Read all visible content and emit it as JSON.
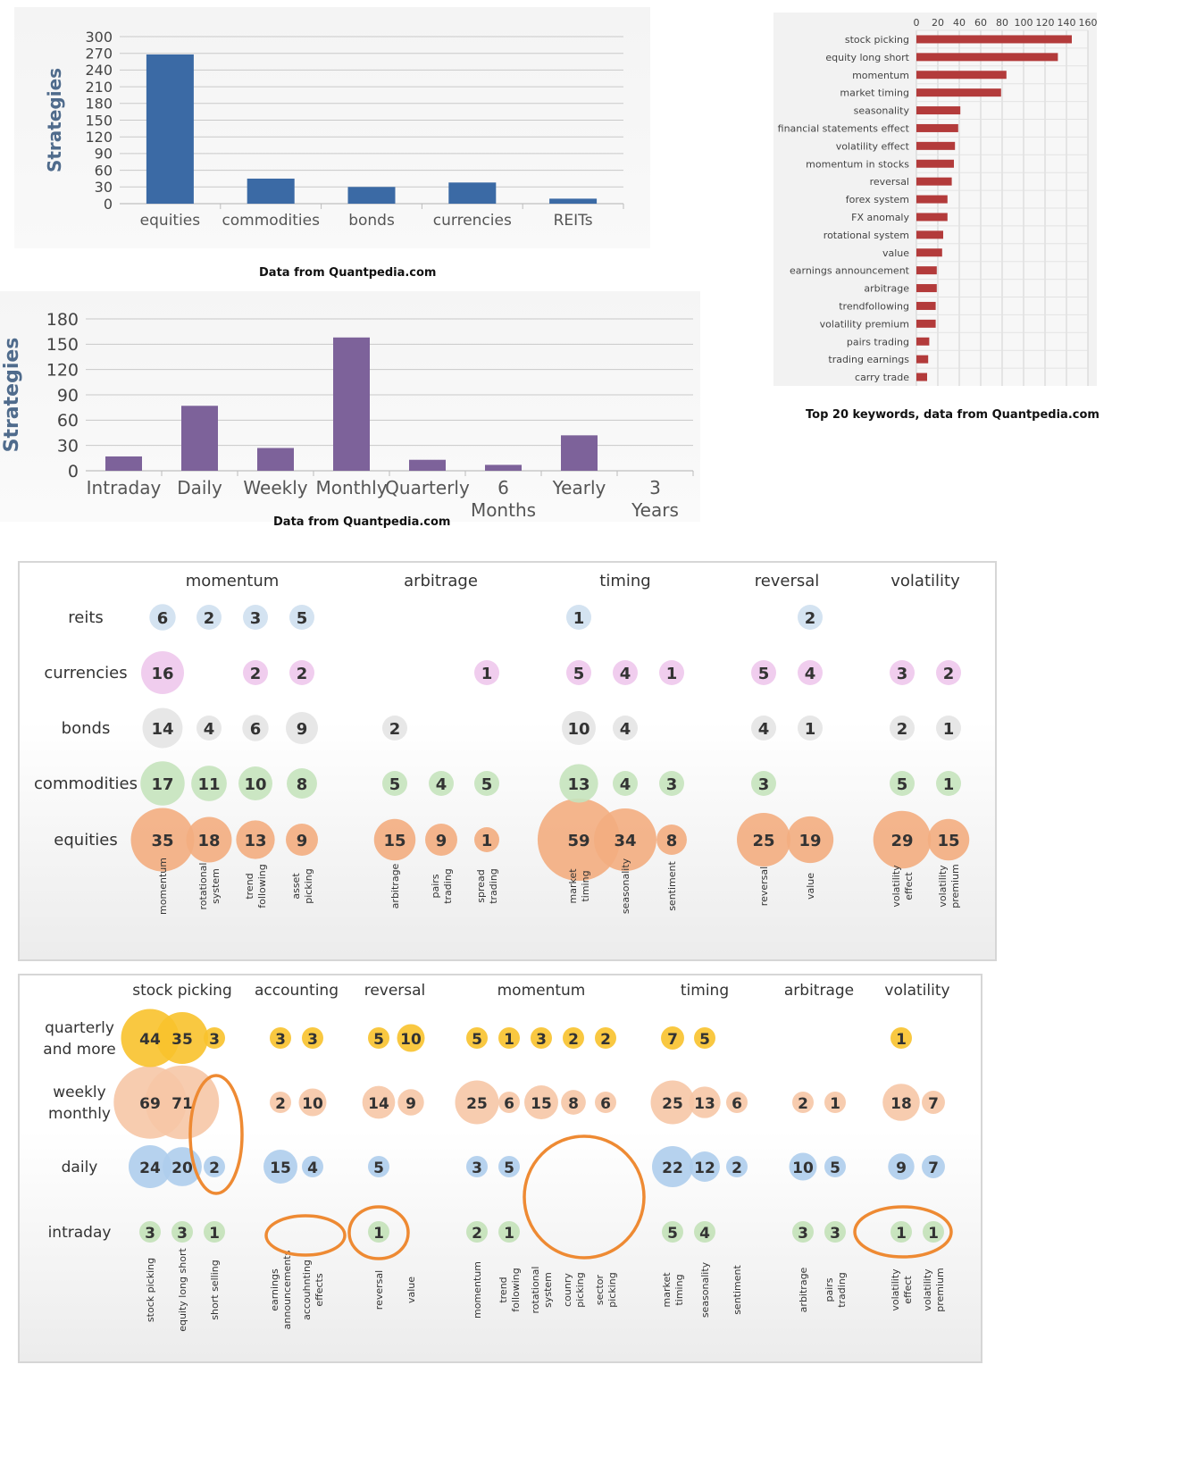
{
  "chart_data": [
    {
      "type": "bar",
      "categories": [
        "equities",
        "commodities",
        "bonds",
        "currencies",
        "REITs"
      ],
      "values": [
        268,
        45,
        30,
        38,
        9
      ],
      "ylabel": "Strategies",
      "ylim": [
        0,
        300
      ],
      "yticks": [
        0,
        30,
        60,
        90,
        120,
        150,
        180,
        210,
        240,
        270,
        300
      ],
      "grid": true,
      "color": "#3b6aa5",
      "caption": "Data from Quantpedia.com"
    },
    {
      "type": "bar",
      "categories": [
        "Intraday",
        "Daily",
        "Weekly",
        "Monthly",
        "Quarterly",
        "6 Months",
        "Yearly",
        "3 Years"
      ],
      "values": [
        17,
        77,
        27,
        158,
        13,
        7,
        42,
        0
      ],
      "ylabel": "Strategies",
      "ylim": [
        0,
        180
      ],
      "yticks": [
        0,
        30,
        60,
        90,
        120,
        150,
        180
      ],
      "grid": true,
      "color": "#7d629a",
      "caption": "Data from Quantpedia.com"
    },
    {
      "type": "bar",
      "orientation": "horizontal",
      "categories": [
        "stock picking",
        "equity long short",
        "momentum",
        "market timing",
        "seasonality",
        "financial statements effect",
        "volatility effect",
        "momentum in stocks",
        "reversal",
        "forex system",
        "FX anomaly",
        "rotational system",
        "value",
        "earnings announcement",
        "arbitrage",
        "trendfollowing",
        "volatility premium",
        "pairs trading",
        "trading earnings",
        "carry trade"
      ],
      "values": [
        145,
        132,
        84,
        79,
        41,
        39,
        36,
        35,
        33,
        29,
        29,
        25,
        24,
        19,
        19,
        18,
        18,
        12,
        11,
        10
      ],
      "xlim": [
        0,
        160
      ],
      "xticks": [
        0,
        20,
        40,
        60,
        80,
        100,
        120,
        140,
        160
      ],
      "grid": true,
      "color": "#b33b3b",
      "caption": "Top 20 keywords, data from Quantpedia.com"
    },
    {
      "type": "bubble",
      "groups": [
        "momentum",
        "arbitrage",
        "timing",
        "reversal",
        "volatility"
      ],
      "rows": [
        "reits",
        "currencies",
        "bonds",
        "commodities",
        "equities"
      ],
      "columns": [
        {
          "label": "momentum",
          "group": 0
        },
        {
          "label": "rotational system",
          "group": 0
        },
        {
          "label": "trend following",
          "group": 0
        },
        {
          "label": "asset picking",
          "group": 0
        },
        {
          "label": "arbitrage",
          "group": 1
        },
        {
          "label": "pairs trading",
          "group": 1
        },
        {
          "label": "spread trading",
          "group": 1
        },
        {
          "label": "market timing",
          "group": 2
        },
        {
          "label": "seasonality",
          "group": 2
        },
        {
          "label": "sentiment",
          "group": 2
        },
        {
          "label": "reversal",
          "group": 3
        },
        {
          "label": "value",
          "group": 3
        },
        {
          "label": "volatility effect",
          "group": 4
        },
        {
          "label": "volatility premium",
          "group": 4
        }
      ],
      "row_colors": [
        "#cfe0f0",
        "#eec8ec",
        "#e4e4e4",
        "#c5e3bd",
        "#f3ad80"
      ],
      "values": [
        [
          6,
          2,
          3,
          5,
          null,
          null,
          null,
          1,
          null,
          null,
          null,
          2,
          null,
          null
        ],
        [
          16,
          null,
          2,
          2,
          null,
          null,
          1,
          5,
          4,
          1,
          5,
          4,
          3,
          2
        ],
        [
          14,
          4,
          6,
          9,
          2,
          null,
          null,
          10,
          4,
          null,
          4,
          1,
          2,
          1
        ],
        [
          17,
          11,
          10,
          8,
          5,
          4,
          5,
          13,
          4,
          3,
          3,
          null,
          5,
          1
        ],
        [
          35,
          18,
          13,
          9,
          15,
          9,
          1,
          59,
          34,
          8,
          25,
          19,
          29,
          15
        ]
      ]
    },
    {
      "type": "bubble",
      "groups": [
        "stock picking",
        "accounting",
        "reversal",
        "momentum",
        "timing",
        "arbitrage",
        "volatility"
      ],
      "rows": [
        "quarterly and more",
        "weekly monthly",
        "daily",
        "intraday"
      ],
      "columns": [
        {
          "label": "stock picking",
          "group": 0
        },
        {
          "label": "equity long short",
          "group": 0
        },
        {
          "label": "short selling",
          "group": 0
        },
        {
          "label": "earnings announcements",
          "group": 1
        },
        {
          "label": "accouhnting effects",
          "group": 1
        },
        {
          "label": "reversal",
          "group": 2
        },
        {
          "label": "value",
          "group": 2
        },
        {
          "label": "momentum",
          "group": 3
        },
        {
          "label": "trend following",
          "group": 3
        },
        {
          "label": "rotational system",
          "group": 3
        },
        {
          "label": "counry picking",
          "group": 3
        },
        {
          "label": "sector picking",
          "group": 3
        },
        {
          "label": "market timing",
          "group": 4
        },
        {
          "label": "seasonality",
          "group": 4
        },
        {
          "label": "sentiment",
          "group": 4
        },
        {
          "label": "arbitrage",
          "group": 5
        },
        {
          "label": "pairs trading",
          "group": 5
        },
        {
          "label": "volatility effect",
          "group": 6
        },
        {
          "label": "volatility premium",
          "group": 6
        }
      ],
      "row_colors": [
        "#f8c22c",
        "#f6c6a6",
        "#aecdec",
        "#c3e1b8"
      ],
      "values": [
        [
          44,
          35,
          3,
          3,
          3,
          5,
          10,
          5,
          1,
          3,
          2,
          2,
          7,
          5,
          null,
          null,
          null,
          1,
          null
        ],
        [
          69,
          71,
          null,
          2,
          10,
          14,
          9,
          25,
          6,
          15,
          8,
          6,
          25,
          13,
          6,
          2,
          1,
          18,
          7
        ],
        [
          24,
          20,
          2,
          15,
          4,
          5,
          null,
          3,
          5,
          null,
          null,
          null,
          22,
          12,
          2,
          10,
          5,
          9,
          7
        ],
        [
          3,
          3,
          1,
          null,
          null,
          1,
          null,
          2,
          1,
          null,
          null,
          null,
          5,
          4,
          null,
          3,
          3,
          1,
          1
        ]
      ]
    }
  ]
}
